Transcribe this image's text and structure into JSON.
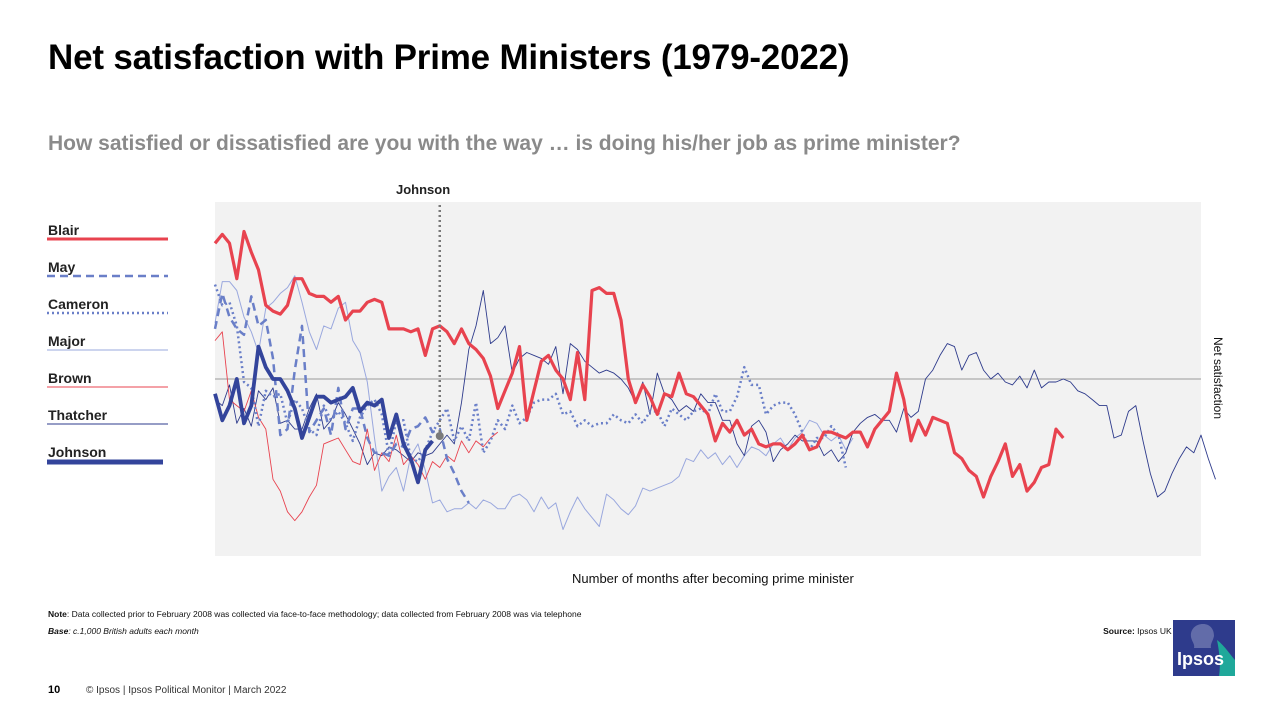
{
  "title": "Net satisfaction with Prime Ministers (1979-2022)",
  "subtitle": "How satisfied or dissatisfied are you with the way … is doing his/her job as prime minister?",
  "note": {
    "label": "Note",
    "text": ": Data collected prior to February 2008 was collected via face-to-face methodology; data collected from February 2008 was via telephone"
  },
  "base": {
    "label": "Base",
    "text": ": c.1,000 British adults each month"
  },
  "source": {
    "label": "Source:",
    "text": " Ipsos UK Political Monitor"
  },
  "footer": {
    "page": "10",
    "text": "© Ipsos | Ipsos  Political Monitor | March 2022"
  },
  "logo_text": "Ipsos",
  "colors": {
    "plot_bg": "#f2f2f2",
    "blair": "#e8434f",
    "brown": "#e8434f",
    "may": "#6a7fc8",
    "cameron": "#6a7fc8",
    "major": "#9aa8de",
    "thatcher": "#2e3b8c",
    "johnson": "#33449b",
    "logo": "#2e3b8c"
  },
  "chart_data": {
    "type": "line",
    "xlabel": "Number of months after becoming prime minister",
    "ylabel": "Net satisfaction",
    "xlim": [
      0,
      136
    ],
    "ylim": [
      -60,
      60
    ],
    "zero_line": 0,
    "annotation": {
      "label": "Johnson",
      "x": 31
    },
    "series": [
      {
        "name": "Blair",
        "key": "blair",
        "style": "solid",
        "width": 3.2,
        "values": [
          46,
          49,
          46,
          34,
          50,
          43,
          37,
          25,
          23,
          22,
          25,
          34,
          34,
          29,
          28,
          28,
          26,
          28,
          20,
          23,
          23,
          26,
          27,
          26,
          17,
          17,
          17,
          16,
          17,
          8,
          17,
          18,
          16,
          12,
          17,
          12,
          10,
          7,
          1,
          -10,
          -4,
          2,
          11,
          -14,
          -4,
          6,
          8,
          3,
          0,
          -7,
          9,
          -7,
          30,
          31,
          29,
          29,
          20,
          0,
          -8,
          -2,
          -6,
          -12,
          -5,
          -6,
          2,
          -5,
          -6,
          -9,
          -12,
          -21,
          -15,
          -18,
          -14,
          -19,
          -17,
          -22,
          -23,
          -22,
          -22,
          -24,
          -22,
          -19,
          -24,
          -23,
          -18,
          -18,
          -19,
          -20,
          -18,
          -18,
          -23,
          -17,
          -14,
          -11,
          2,
          -7,
          -21,
          -14,
          -19,
          -13,
          -14,
          -15,
          -25,
          -27,
          -31,
          -33,
          -40,
          -33,
          -28,
          -22,
          -33,
          -29,
          -38,
          -35,
          -30,
          -29,
          -17,
          -20
        ]
      },
      {
        "name": "May",
        "key": "may",
        "style": "dashed",
        "width": 2.5,
        "values": [
          17,
          29,
          21,
          17,
          15,
          28,
          18,
          20,
          7,
          -19,
          -17,
          3,
          18,
          -18,
          -14,
          -10,
          -19,
          -3,
          -17,
          -10,
          -10,
          -20,
          -25,
          -25,
          -26,
          -22,
          -23,
          -17,
          -16,
          -13,
          -18,
          -17,
          -27,
          -32,
          -38,
          -42
        ]
      },
      {
        "name": "Cameron",
        "key": "cameron",
        "style": "dotted",
        "width": 2.5,
        "values": [
          32,
          25,
          26,
          18,
          -1,
          -3,
          -16,
          -4,
          -6,
          -5,
          -15,
          -7,
          -10,
          -17,
          -19,
          -9,
          -14,
          -11,
          -15,
          -21,
          -13,
          -9,
          -7,
          -12,
          -26,
          -14,
          -14,
          -27,
          -28,
          -24,
          -18,
          -14,
          -10,
          -21,
          -16,
          -21,
          -8,
          -25,
          -21,
          -14,
          -17,
          -9,
          -15,
          -13,
          -8,
          -7,
          -7,
          -5,
          -12,
          -11,
          -16,
          -14,
          -16,
          -15,
          -15,
          -12,
          -14,
          -15,
          -12,
          -15,
          -11,
          -11,
          -16,
          -10,
          -12,
          -14,
          -11,
          -10,
          -12,
          -5,
          -11,
          -11,
          -6,
          4,
          -2,
          -2,
          -12,
          -9,
          -8,
          -8,
          -12,
          -18,
          -24,
          -20,
          -20,
          -16,
          -19,
          -30
        ]
      },
      {
        "name": "Major",
        "key": "major",
        "style": "solid",
        "width": 1,
        "values": [
          19,
          33,
          33,
          30,
          21,
          16,
          9,
          24,
          26,
          29,
          31,
          35,
          26,
          16,
          10,
          18,
          17,
          24,
          26,
          13,
          9,
          -1,
          -20,
          -38,
          -33,
          -30,
          -38,
          -26,
          -22,
          -31,
          -42,
          -41,
          -45,
          -44,
          -44,
          -42,
          -44,
          -41,
          -42,
          -44,
          -44,
          -40,
          -39,
          -41,
          -45,
          -40,
          -44,
          -42,
          -51,
          -45,
          -40,
          -44,
          -47,
          -50,
          -39,
          -41,
          -44,
          -46,
          -43,
          -37,
          -38,
          -37,
          -36,
          -35,
          -33,
          -27,
          -28,
          -24,
          -27,
          -25,
          -29,
          -26,
          -30,
          -26,
          -23,
          -24,
          -26,
          -22,
          -20,
          -24,
          -20,
          -18,
          -14,
          -15,
          -19,
          -21,
          -19,
          -24,
          -20
        ]
      },
      {
        "name": "Brown",
        "key": "brown",
        "style": "solid",
        "width": 0.9,
        "values": [
          13,
          16,
          -7,
          -9,
          -11,
          -4,
          -13,
          -17,
          -34,
          -38,
          -45,
          -48,
          -45,
          -40,
          -36,
          -22,
          -21,
          -20,
          -24,
          -28,
          -29,
          -17,
          -31,
          -25,
          -28,
          -19,
          -29,
          -26,
          -29,
          -34,
          -28,
          -30,
          -26,
          -28,
          -21,
          -25,
          -21,
          -23,
          -20,
          -18
        ]
      },
      {
        "name": "Thatcher",
        "key": "thatcher",
        "style": "solid",
        "width": 0.9,
        "values": [
          -7,
          -9,
          -2,
          -15,
          -10,
          -16,
          -4,
          -7,
          -3,
          -15,
          -14,
          -17,
          -17,
          -10,
          -5,
          -17,
          -14,
          -8,
          -12,
          -17,
          -22,
          -29,
          -25,
          -26,
          -23,
          -24,
          -26,
          -28,
          -25,
          -26,
          -25,
          -22,
          -19,
          -22,
          -8,
          10,
          18,
          30,
          12,
          14,
          18,
          2,
          7,
          9,
          8,
          7,
          5,
          11,
          -5,
          12,
          10,
          6,
          4,
          2,
          3,
          2,
          0,
          -3,
          -8,
          -1,
          -12,
          2,
          -5,
          -7,
          -11,
          -9,
          -11,
          -5,
          -8,
          -8,
          -14,
          -14,
          -22,
          -26,
          -16,
          -14,
          -18,
          -28,
          -24,
          -22,
          -19,
          -21,
          -21,
          -21,
          -26,
          -24,
          -28,
          -25,
          -18,
          -15,
          -13,
          -12,
          -14,
          -14,
          -18,
          -10,
          -13,
          -11,
          0,
          3,
          8,
          12,
          11,
          3,
          8,
          9,
          3,
          0,
          2,
          -1,
          -2,
          1,
          -3,
          3,
          -3,
          -1,
          -1,
          0,
          -1,
          -4,
          -5,
          -7,
          -9,
          -9,
          -20,
          -19,
          -11,
          -9,
          -21,
          -32,
          -40,
          -38,
          -32,
          -27,
          -23,
          -25,
          -19,
          -27,
          -34
        ]
      },
      {
        "name": "Johnson",
        "key": "johnson",
        "style": "solid",
        "width": 3.8,
        "values": [
          -5,
          -14,
          -9,
          0,
          -15,
          -9,
          11,
          4,
          0,
          0,
          -4,
          -10,
          -20,
          -13,
          -6,
          -6,
          -8,
          -7,
          -6,
          -3,
          -11,
          -8,
          -9,
          -7,
          -20,
          -12,
          -22,
          -27,
          -35,
          -24,
          -21
        ]
      }
    ]
  }
}
